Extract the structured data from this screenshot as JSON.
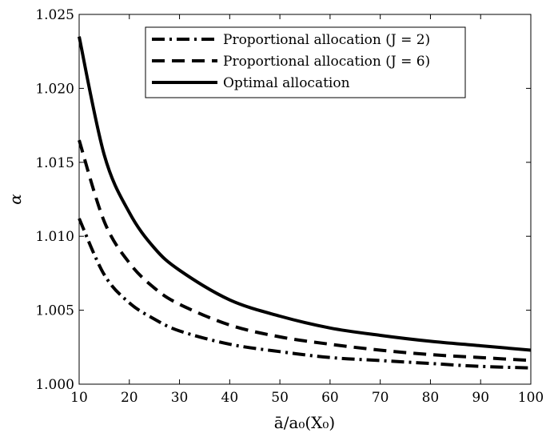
{
  "chart_data": {
    "type": "line",
    "title": "",
    "xlabel": "ā/a₀(X₀)",
    "ylabel": "α",
    "xlim": [
      10,
      100
    ],
    "ylim": [
      1.0,
      1.025
    ],
    "xticks": [
      10,
      20,
      30,
      40,
      50,
      60,
      70,
      80,
      90,
      100
    ],
    "yticks": [
      1.0,
      1.005,
      1.01,
      1.015,
      1.02,
      1.025
    ],
    "ytick_labels": [
      "1.000",
      "1.005",
      "1.010",
      "1.015",
      "1.020",
      "1.025"
    ],
    "grid": false,
    "legend_position": "top-right",
    "x": [
      10,
      15,
      20,
      25,
      30,
      40,
      50,
      60,
      70,
      80,
      90,
      100
    ],
    "series": [
      {
        "name": "Proportional allocation (J = 2)",
        "style": "dashdot",
        "values": [
          1.0112,
          1.0074,
          1.0055,
          1.0044,
          1.0036,
          1.0027,
          1.0022,
          1.0018,
          1.0016,
          1.0014,
          1.0012,
          1.0011
        ]
      },
      {
        "name": "Proportional allocation (J = 6)",
        "style": "dashed",
        "values": [
          1.0165,
          1.011,
          1.0082,
          1.0065,
          1.0054,
          1.004,
          1.0032,
          1.0027,
          1.0023,
          1.002,
          1.0018,
          1.0016
        ]
      },
      {
        "name": "Optimal allocation",
        "style": "solid",
        "values": [
          1.0235,
          1.0155,
          1.0116,
          1.0092,
          1.0077,
          1.0057,
          1.0046,
          1.0038,
          1.0033,
          1.0029,
          1.0026,
          1.0023
        ]
      }
    ]
  }
}
